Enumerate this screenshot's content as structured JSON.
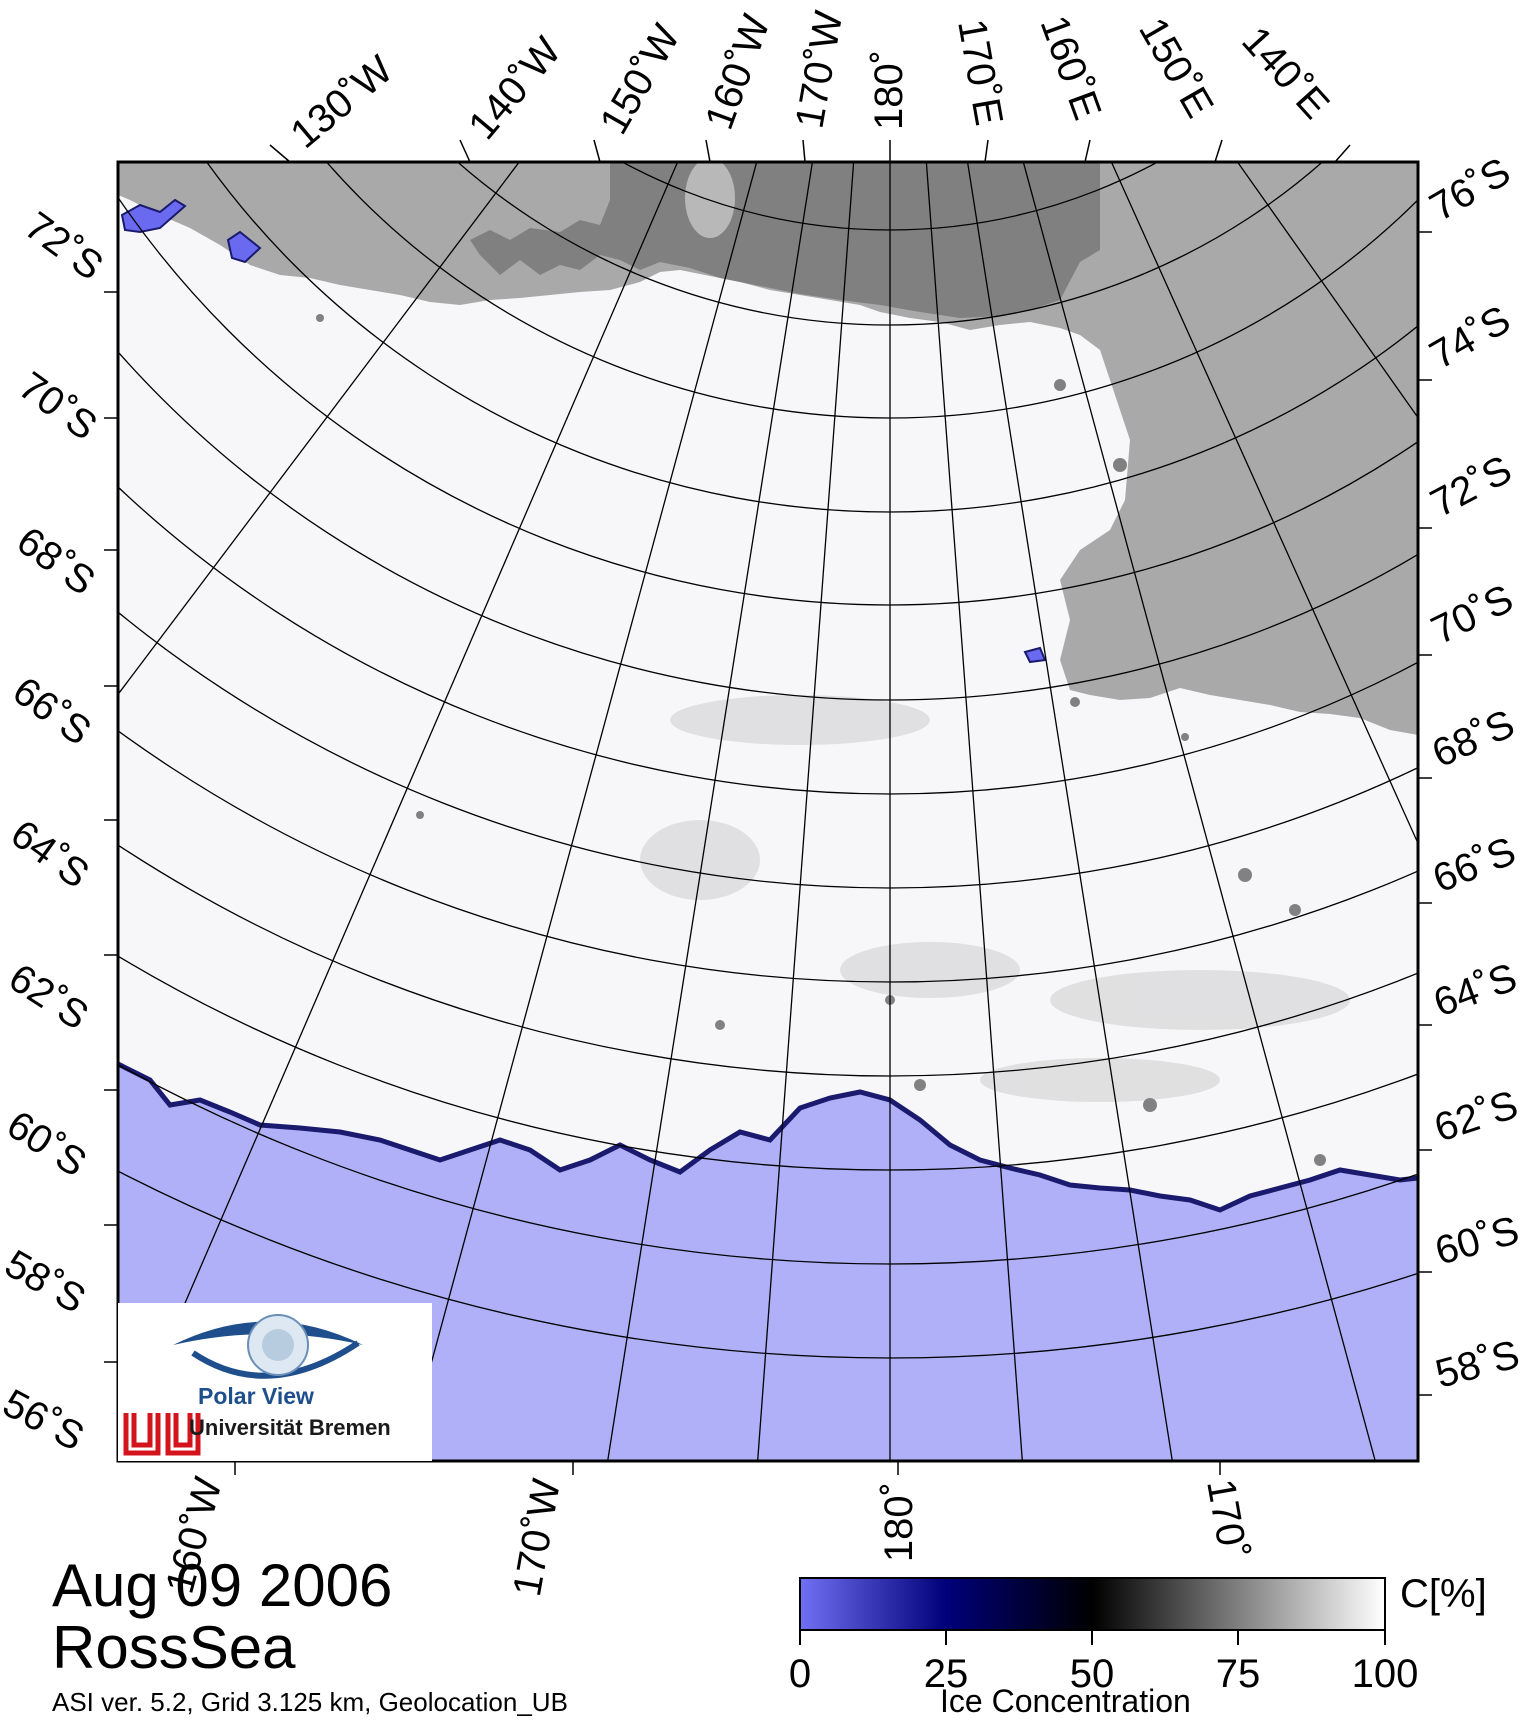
{
  "map": {
    "date": "Aug 09 2006",
    "region": "RossSea",
    "footer": "ASI ver. 5.2,  Grid 3.125 km, Geolocation_UB",
    "colors": {
      "land": "#a9a9a9",
      "land_dark": "#7d7d7d",
      "ocean": "#b0b0f8",
      "ice_edge": "#1a1a6e",
      "frame": "#000000"
    },
    "lon_labels_top": [
      "130˚W",
      "140˚W",
      "150˚W",
      "160˚W",
      "170˚W",
      "180˚",
      "170˚E",
      "160˚E",
      "150˚E",
      "140˚E"
    ],
    "lon_labels_bottom": [
      "160˚W",
      "170˚W",
      "180˚",
      "170˚"
    ],
    "lat_labels_left": [
      "72˚S",
      "70˚S",
      "68˚S",
      "66˚S",
      "64˚S",
      "62˚S",
      "60˚S",
      "58˚S",
      "56˚S"
    ],
    "lat_labels_right": [
      "76˚S",
      "74˚S",
      "72˚S",
      "70˚S",
      "68˚S",
      "66˚S",
      "64˚S",
      "62˚S",
      "60˚S",
      "58˚S"
    ]
  },
  "logo": {
    "name": "Polar View",
    "institution": "Universität Bremen"
  },
  "colorbar": {
    "title": "Ice Concentration",
    "unit": "C[%]",
    "ticks": [
      "0",
      "25",
      "50",
      "75",
      "100"
    ],
    "stops": [
      "#6a6af0",
      "#00007a",
      "#000000",
      "#7a7a7a",
      "#ffffff"
    ]
  }
}
